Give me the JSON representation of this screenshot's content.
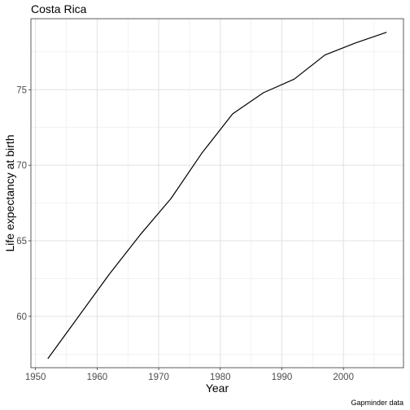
{
  "chart_data": {
    "type": "line",
    "title": "Costa Rica",
    "xlabel": "Year",
    "ylabel": "Life expectancy at birth",
    "caption": "Gapminder data",
    "x_ticks": [
      1950,
      1960,
      1970,
      1980,
      1990,
      2000
    ],
    "y_ticks": [
      60,
      65,
      70,
      75
    ],
    "xlim": [
      1949.25,
      2009.75
    ],
    "ylim": [
      56.6,
      79.7
    ],
    "grid": true,
    "series": [
      {
        "color": "#000000",
        "x": [
          1952,
          1957,
          1962,
          1967,
          1972,
          1977,
          1982,
          1987,
          1992,
          1997,
          2002,
          2007
        ],
        "values": [
          57.2,
          60.0,
          62.8,
          65.4,
          67.8,
          70.8,
          73.4,
          74.8,
          75.7,
          77.3,
          78.1,
          78.8
        ]
      }
    ]
  }
}
